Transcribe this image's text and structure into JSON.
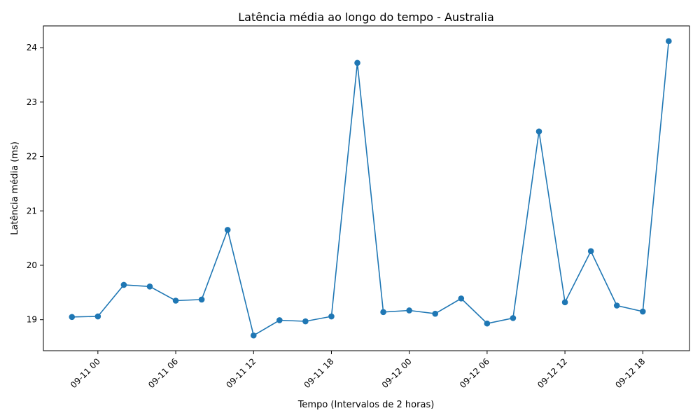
{
  "chart_data": {
    "type": "line",
    "title": "Latência média ao longo do tempo - Australia",
    "xlabel": "Tempo (Intervalos de 2 horas)",
    "ylabel": "Latência média (ms)",
    "x_ticks": [
      "09-11 00",
      "09-11 06",
      "09-11 12",
      "09-11 18",
      "09-12 00",
      "09-12 06",
      "09-12 12",
      "09-12 18"
    ],
    "y_ticks": [
      "19",
      "20",
      "21",
      "22",
      "23",
      "24"
    ],
    "xlim_hours": [
      -4.2,
      45.6
    ],
    "ylim": [
      18.43,
      24.4
    ],
    "grid": false,
    "series": [
      {
        "color": "#1f77b4",
        "marker": "circle",
        "x_hours": [
          -2,
          0,
          2,
          4,
          6,
          8,
          10,
          12,
          14,
          16,
          18,
          20,
          22,
          24,
          26,
          28,
          30,
          32,
          34,
          36,
          38,
          40,
          42,
          44
        ],
        "values": [
          19.05,
          19.06,
          19.64,
          19.61,
          19.35,
          19.37,
          20.65,
          18.71,
          18.99,
          18.97,
          19.06,
          23.72,
          19.14,
          19.17,
          19.11,
          19.39,
          18.93,
          19.03,
          22.46,
          19.32,
          20.26,
          19.26,
          19.15,
          24.12
        ]
      }
    ]
  }
}
